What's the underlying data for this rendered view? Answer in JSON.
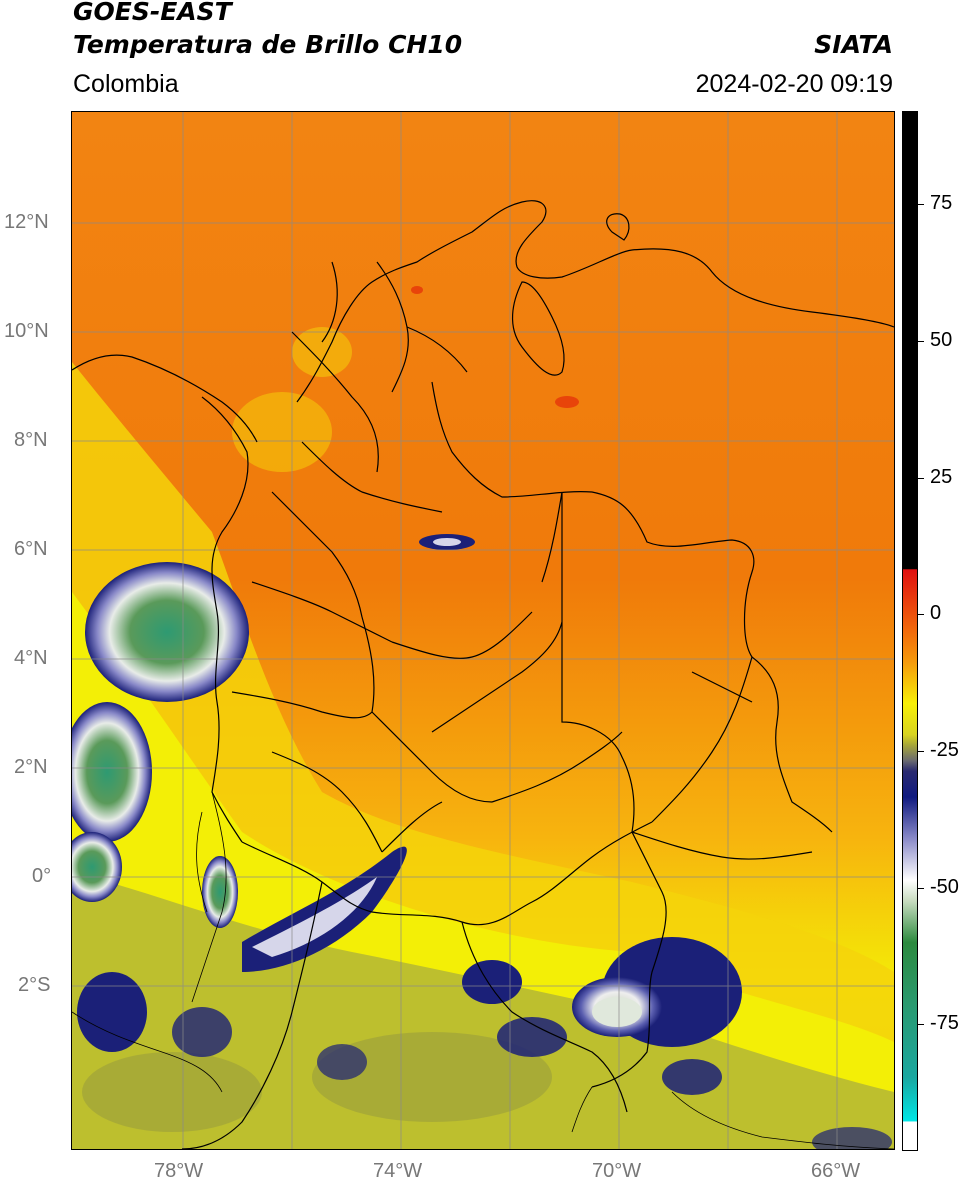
{
  "header": {
    "satellite": "GOES-EAST",
    "product": "Temperatura de Brillo CH10",
    "region": "Colombia",
    "agency": "SIATA",
    "datetime": "2024-02-20 09:19"
  },
  "map": {
    "lat_labels": [
      "12°N",
      "10°N",
      "8°N",
      "6°N",
      "4°N",
      "2°N",
      "0°",
      "2°S"
    ],
    "lon_labels": [
      "78°W",
      "74°W",
      "70°W",
      "66°W"
    ],
    "grid": true,
    "colors": {
      "warm_base": "#f07a0a",
      "orange": "#f79a0c",
      "yellow": "#f3ef06",
      "olive": "#bdbf2e",
      "navy": "#1b2078",
      "white": "#f2f2f2",
      "green": "#3f9c6a",
      "teal": "#20a08a"
    }
  },
  "colorbar": {
    "tick_labels": [
      "75",
      "50",
      "25",
      "0",
      "-25",
      "-50",
      "-75"
    ],
    "colors": {
      "top": "#000000",
      "red": "#e01010",
      "orange": "#f58a0c",
      "yellow": "#f7f008",
      "olive": "#a6a63a",
      "navy": "#101a80",
      "white": "#ffffff",
      "green": "#2c8a3e",
      "teal": "#1aa7a0",
      "cyan": "#00e6e6"
    }
  }
}
